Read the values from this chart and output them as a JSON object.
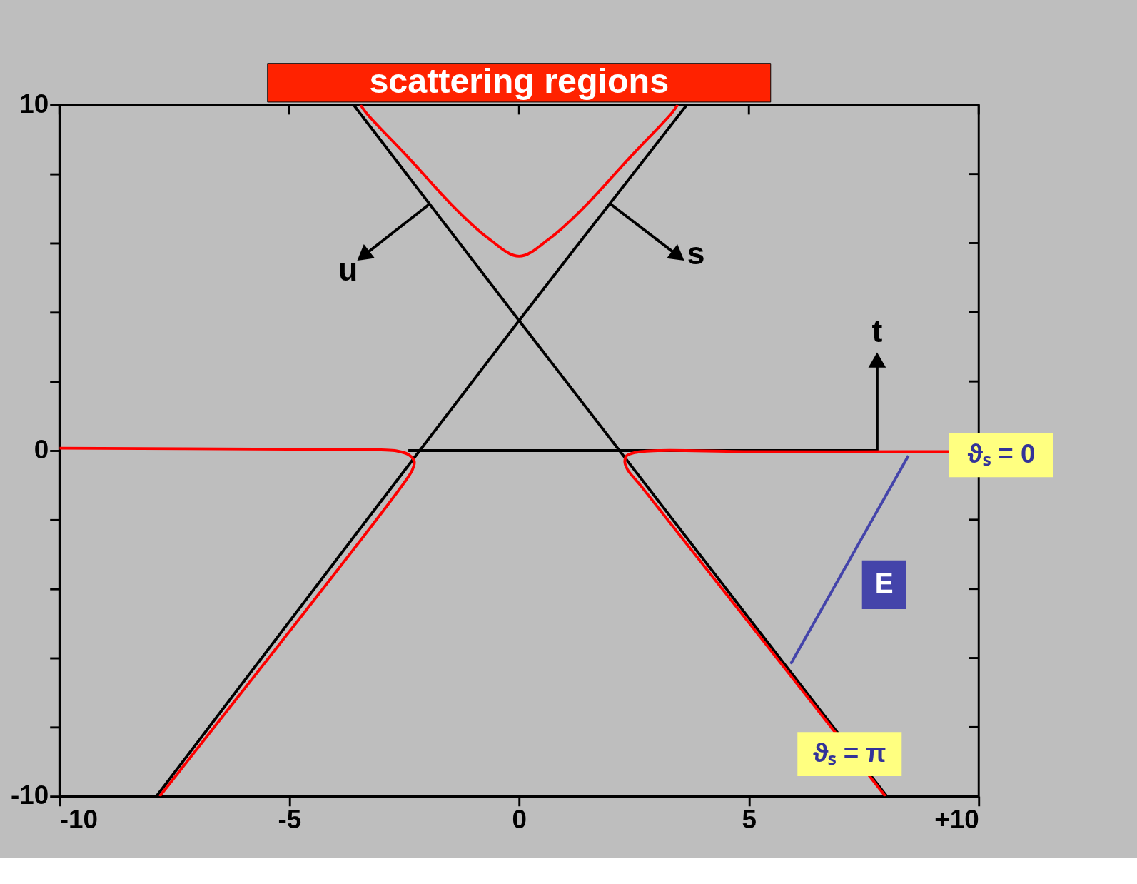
{
  "chart_data": {
    "type": "line",
    "title": "scattering regions",
    "xlim": [
      -10,
      10
    ],
    "ylim": [
      -10,
      10
    ],
    "xticks": [
      -10,
      -5,
      0,
      5,
      {
        "value": 10,
        "label": "+10"
      }
    ],
    "yticks": [
      -10,
      {
        "value": -8,
        "label": null
      },
      {
        "value": -6,
        "label": null
      },
      {
        "value": -4,
        "label": null
      },
      {
        "value": -2,
        "label": null
      },
      0,
      {
        "value": 2,
        "label": null
      },
      {
        "value": 4,
        "label": null
      },
      {
        "value": 6,
        "label": null
      },
      {
        "value": 8,
        "label": null
      },
      10
    ],
    "grid": false,
    "legend": false,
    "line_style": "solid",
    "series": [
      {
        "color": "#000000",
        "x": [
          -3.6,
          0,
          8.0
        ],
        "values": [
          10,
          3.76,
          -10
        ]
      },
      {
        "color": "#000000",
        "x": [
          3.65,
          0,
          -7.89
        ],
        "values": [
          10,
          3.76,
          -10
        ]
      },
      {
        "color": "#000000",
        "x": [
          -2.41,
          7.79
        ],
        "values": [
          0,
          0
        ]
      },
      {
        "color": "#000000",
        "marker": "triangle",
        "x": [
          -1.95,
          -3.39
        ],
        "values": [
          7.13,
          5.63
        ]
      },
      {
        "color": "#000000",
        "marker": "triangle",
        "x": [
          1.99,
          3.46
        ],
        "values": [
          7.13,
          5.63
        ]
      },
      {
        "color": "#000000",
        "marker": "triangle",
        "x": [
          7.79,
          7.79
        ],
        "values": [
          0,
          2.62
        ]
      },
      {
        "color": "#ff0000",
        "x": [
          -3.45,
          -3.32,
          -2.39,
          -1.4,
          -0.67,
          0,
          0.67,
          1.4,
          2.39,
          3.32,
          3.45
        ],
        "values": [
          10,
          9.76,
          8.45,
          7.02,
          6.14,
          5.62,
          6.14,
          7.02,
          8.45,
          9.76,
          10
        ]
      },
      {
        "color": "#ff0000",
        "x": [
          -10,
          -5,
          -3,
          -2.66,
          -2.4,
          -2.28,
          -2.32,
          -2.55,
          -7.82
        ],
        "values": [
          0.07,
          0.04,
          0.02,
          -0.01,
          -0.12,
          -0.32,
          -0.55,
          -1.02,
          -10
        ]
      },
      {
        "color": "#ff0000",
        "x": [
          9.35,
          5,
          3.02,
          2.51,
          2.34,
          2.3,
          2.36,
          2.65,
          7.97
        ],
        "values": [
          -0.03,
          -0.03,
          0,
          -0.06,
          -0.15,
          -0.32,
          -0.55,
          -1.02,
          -10
        ]
      },
      {
        "color": "#4444aa",
        "x": [
          5.91,
          8.47
        ],
        "values": [
          -6.17,
          -0.15
        ]
      }
    ],
    "annotations": [
      {
        "text": "u",
        "x": -3.39,
        "y": 5.63
      },
      {
        "text": "s",
        "x": 3.46,
        "y": 5.63
      },
      {
        "text": "t",
        "x": 7.79,
        "y": 2.62
      },
      {
        "text": "E",
        "x": 7.19,
        "y": -3.16
      },
      {
        "text": "ϑₛ = π",
        "x": 7.25,
        "y": -8.78
      },
      {
        "text": "ϑₛ = 0",
        "x": 9.35,
        "y": -0.03
      }
    ]
  }
}
